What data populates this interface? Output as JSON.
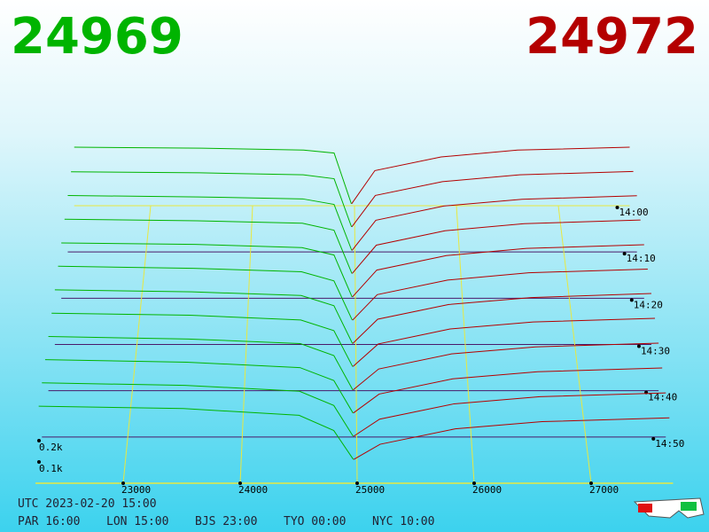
{
  "chart_data": {
    "type": "depth3d",
    "best_bid": 24969,
    "best_ask": 24972,
    "bid_color": "#00b400",
    "ask_color": "#b40000",
    "xlim": [
      22250,
      27700
    ],
    "xticks": [
      23000,
      24000,
      25000,
      26000,
      27000
    ],
    "zlim": [
      0,
      60
    ],
    "zticks": [
      {
        "value": 0,
        "label": "14:00"
      },
      {
        "value": 10,
        "label": "14:10"
      },
      {
        "value": 20,
        "label": "14:20"
      },
      {
        "value": 30,
        "label": "14:30"
      },
      {
        "value": 40,
        "label": "14:40"
      },
      {
        "value": 50,
        "label": "14:50"
      }
    ],
    "yticks": [
      {
        "value": 100,
        "label": "0.1k"
      },
      {
        "value": 200,
        "label": "0.2k"
      }
    ],
    "bid_prices": [
      22250,
      23500,
      24500,
      24800
    ],
    "ask_prices": [
      25200,
      25850,
      26600,
      27700
    ],
    "times": [
      0,
      5,
      10,
      15,
      20,
      25,
      30,
      35,
      40,
      45,
      50,
      55
    ],
    "bids": [
      [
        300,
        295,
        285,
        270,
        10
      ],
      [
        290,
        285,
        275,
        255,
        10
      ],
      [
        285,
        278,
        268,
        240,
        8
      ],
      [
        280,
        272,
        260,
        225,
        8
      ],
      [
        275,
        268,
        252,
        215,
        6
      ],
      [
        272,
        262,
        245,
        200,
        6
      ],
      [
        268,
        258,
        240,
        190,
        5
      ],
      [
        265,
        255,
        232,
        180,
        5
      ],
      [
        262,
        250,
        228,
        170,
        4
      ],
      [
        260,
        248,
        222,
        160,
        4
      ],
      [
        258,
        246,
        218,
        150,
        3
      ],
      [
        255,
        244,
        212,
        140,
        3
      ]
    ],
    "asks": [
      [
        10,
        180,
        250,
        285,
        300
      ],
      [
        10,
        170,
        240,
        275,
        292
      ],
      [
        8,
        160,
        232,
        266,
        284
      ],
      [
        8,
        150,
        222,
        258,
        276
      ],
      [
        6,
        140,
        212,
        248,
        266
      ],
      [
        6,
        132,
        204,
        240,
        258
      ],
      [
        5,
        124,
        196,
        230,
        250
      ],
      [
        5,
        115,
        188,
        222,
        240
      ],
      [
        4,
        105,
        178,
        212,
        230
      ],
      [
        4,
        95,
        168,
        202,
        220
      ],
      [
        3,
        85,
        158,
        192,
        210
      ],
      [
        3,
        75,
        148,
        182,
        200
      ]
    ],
    "footer": {
      "utc": "UTC 2023-02-20 15:00",
      "cities": [
        "PAR 16:00",
        "LON 15:00",
        "BJS 23:00",
        "TYO 00:00",
        "NYC 10:00"
      ]
    }
  }
}
